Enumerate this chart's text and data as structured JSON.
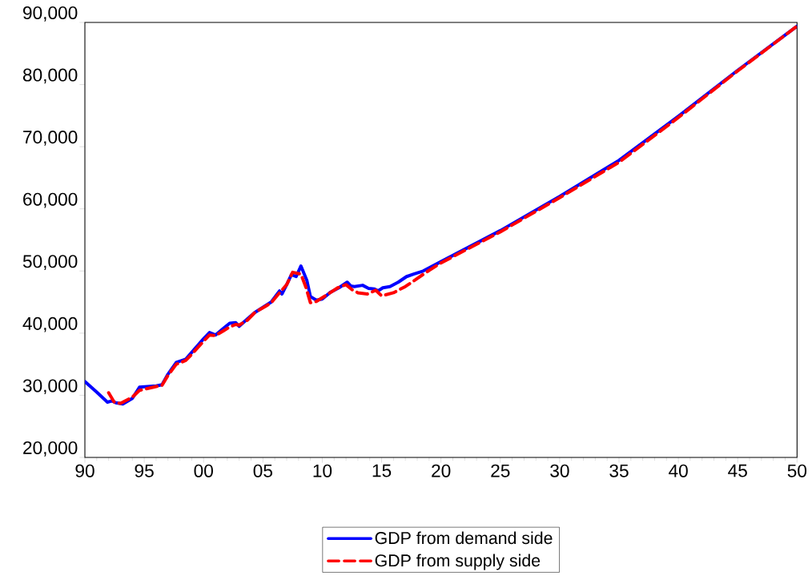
{
  "chart_data": {
    "type": "line",
    "legend": "bottom",
    "grid": false,
    "xlim": [
      1990,
      2050
    ],
    "xticks": [
      {
        "value": 1990,
        "label": "90"
      },
      {
        "value": 1995,
        "label": "95"
      },
      {
        "value": 2000,
        "label": "00"
      },
      {
        "value": 2005,
        "label": "05"
      },
      {
        "value": 2010,
        "label": "10"
      },
      {
        "value": 2015,
        "label": "15"
      },
      {
        "value": 2020,
        "label": "20"
      },
      {
        "value": 2025,
        "label": "25"
      },
      {
        "value": 2030,
        "label": "30"
      },
      {
        "value": 2035,
        "label": "35"
      },
      {
        "value": 2040,
        "label": "40"
      },
      {
        "value": 2045,
        "label": "45"
      },
      {
        "value": 2050,
        "label": "50"
      }
    ],
    "ylim": [
      20000,
      90000
    ],
    "yticks": [
      {
        "value": 20000,
        "label": "20,000"
      },
      {
        "value": 30000,
        "label": "30,000"
      },
      {
        "value": 40000,
        "label": "40,000"
      },
      {
        "value": 50000,
        "label": "50,000"
      },
      {
        "value": 60000,
        "label": "60,000"
      },
      {
        "value": 70000,
        "label": "70,000"
      },
      {
        "value": 80000,
        "label": "80,000"
      },
      {
        "value": 90000,
        "label": "90,000"
      }
    ],
    "series": [
      {
        "name": "GDP from demand side",
        "color": "#0000ff",
        "line_style": "solid",
        "x": [
          1990,
          1991,
          1991.9,
          1992.3,
          1992.6,
          1993.2,
          1994,
          1994.6,
          1996,
          1996.5,
          1997,
          1997.7,
          1998.5,
          1999,
          2000,
          2000.5,
          2001,
          2001.7,
          2002.2,
          2002.7,
          2003,
          2003.7,
          2004.3,
          2005.2,
          2005.7,
          2006.4,
          2006.6,
          2007,
          2007.4,
          2007.8,
          2008.2,
          2008.7,
          2009,
          2009.5,
          2010,
          2010.7,
          2011.4,
          2012.1,
          2012.4,
          2012.7,
          2013.4,
          2013.9,
          2014.4,
          2014.7,
          2015.1,
          2015.7,
          2016.4,
          2017.1,
          2017.7,
          2018.5,
          2020,
          2025,
          2030,
          2035,
          2040,
          2045,
          2050
        ],
        "values": [
          32200,
          30500,
          28900,
          29100,
          28800,
          28600,
          29500,
          31300,
          31500,
          31700,
          33400,
          35300,
          35800,
          36900,
          39100,
          40100,
          39700,
          40800,
          41600,
          41700,
          41100,
          42300,
          43300,
          44400,
          45000,
          46800,
          46300,
          47800,
          49400,
          49100,
          50800,
          48500,
          45900,
          45300,
          45500,
          46600,
          47300,
          48200,
          47600,
          47500,
          47700,
          47200,
          47100,
          46800,
          47300,
          47500,
          48200,
          49100,
          49500,
          50000,
          51500,
          56500,
          62000,
          67800,
          74900,
          82300,
          89400
        ]
      },
      {
        "name": "GDP from supply side",
        "color": "#ff0000",
        "line_style": "dashed",
        "x": [
          1992,
          1992.5,
          1993,
          1994,
          1994.6,
          1996,
          1996.5,
          1997,
          1997.7,
          1998.5,
          1999,
          2000,
          2000.5,
          2001,
          2001.7,
          2002.2,
          2002.7,
          2003,
          2003.7,
          2004.3,
          2005.2,
          2005.7,
          2006.4,
          2007,
          2007.5,
          2008.2,
          2008.6,
          2009,
          2009.5,
          2010.5,
          2011.3,
          2012,
          2012.5,
          2013,
          2013.8,
          2014.5,
          2015,
          2016,
          2017,
          2018,
          2019,
          2020,
          2025,
          2030,
          2035,
          2040,
          2045,
          2050
        ],
        "values": [
          30400,
          28800,
          28700,
          29700,
          30800,
          31400,
          31600,
          33200,
          35000,
          35600,
          36600,
          38700,
          39700,
          39600,
          40400,
          41000,
          41400,
          41300,
          42100,
          43300,
          44300,
          44900,
          46500,
          47800,
          49800,
          49500,
          47500,
          44900,
          45100,
          46300,
          47300,
          47800,
          47000,
          46500,
          46300,
          46900,
          46000,
          46500,
          47500,
          48800,
          50100,
          51300,
          56300,
          61800,
          67500,
          74700,
          82200,
          89400
        ]
      }
    ]
  }
}
